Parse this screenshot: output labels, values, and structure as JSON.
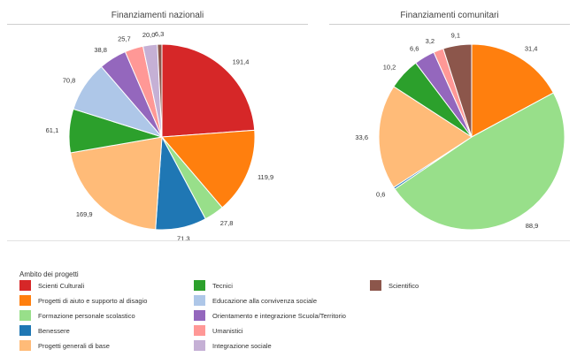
{
  "chart_data": [
    {
      "type": "pie",
      "title": "Finanziamenti nazionali",
      "slices": [
        {
          "category": "Scienti Culturali",
          "value": 191.4,
          "label": "191,4",
          "color": "#d62728"
        },
        {
          "category": "Progetti di aiuto e supporto al disagio",
          "value": 119.9,
          "label": "119,9",
          "color": "#ff7f0e"
        },
        {
          "category": "Formazione personale scolastico",
          "value": 27.8,
          "label": "27,8",
          "color": "#98df8a"
        },
        {
          "category": "Benessere",
          "value": 71.3,
          "label": "71,3",
          "color": "#1f77b4"
        },
        {
          "category": "Progetti generali di base",
          "value": 169.9,
          "label": "169,9",
          "color": "#ffbb78"
        },
        {
          "category": "Tecnici",
          "value": 61.1,
          "label": "61,1",
          "color": "#2ca02c"
        },
        {
          "category": "Educazione alla convivenza sociale",
          "value": 70.8,
          "label": "70,8",
          "color": "#aec7e8"
        },
        {
          "category": "Orientamento e integrazione Scuola/Territorio",
          "value": 38.8,
          "label": "38,8",
          "color": "#9467bd"
        },
        {
          "category": "Umanistici",
          "value": 25.7,
          "label": "25,7",
          "color": "#ff9896"
        },
        {
          "category": "Integrazione sociale",
          "value": 20.0,
          "label": "20,0",
          "color": "#c5b0d5"
        },
        {
          "category": "Scientifico",
          "value": 6.3,
          "label": "6,3",
          "color": "#8c564b"
        }
      ]
    },
    {
      "type": "pie",
      "title": "Finanziamenti comunitari",
      "slices": [
        {
          "category": "Scienti Culturali",
          "value": 0,
          "label": "",
          "color": "#d62728"
        },
        {
          "category": "Progetti di aiuto e supporto al disagio",
          "value": 31.4,
          "label": "31,4",
          "color": "#ff7f0e"
        },
        {
          "category": "Formazione personale scolastico",
          "value": 88.9,
          "label": "88,9",
          "color": "#98df8a"
        },
        {
          "category": "Benessere",
          "value": 0.6,
          "label": "0,6",
          "color": "#1f77b4"
        },
        {
          "category": "Progetti generali di base",
          "value": 33.6,
          "label": "33,6",
          "color": "#ffbb78"
        },
        {
          "category": "Tecnici",
          "value": 10.2,
          "label": "10,2",
          "color": "#2ca02c"
        },
        {
          "category": "Educazione alla convivenza sociale",
          "value": 0,
          "label": "",
          "color": "#aec7e8"
        },
        {
          "category": "Orientamento e integrazione Scuola/Territorio",
          "value": 6.6,
          "label": "6,6",
          "color": "#9467bd"
        },
        {
          "category": "Umanistici",
          "value": 3.2,
          "label": "3,2",
          "color": "#ff9896"
        },
        {
          "category": "Integrazione sociale",
          "value": 0,
          "label": "",
          "color": "#c5b0d5"
        },
        {
          "category": "Scientifico",
          "value": 9.1,
          "label": "9,1",
          "color": "#8c564b"
        }
      ]
    }
  ],
  "legend": {
    "title": "Ambito dei progetti",
    "placement": "bottom",
    "items": [
      {
        "label": "Scienti Culturali",
        "color": "#d62728"
      },
      {
        "label": "Progetti di aiuto e supporto al disagio",
        "color": "#ff7f0e"
      },
      {
        "label": "Formazione personale scolastico",
        "color": "#98df8a"
      },
      {
        "label": "Benessere",
        "color": "#1f77b4"
      },
      {
        "label": "Progetti generali di base",
        "color": "#ffbb78"
      },
      {
        "label": "Tecnici",
        "color": "#2ca02c"
      },
      {
        "label": "Educazione alla convivenza sociale",
        "color": "#aec7e8"
      },
      {
        "label": "Orientamento e integrazione Scuola/Territorio",
        "color": "#9467bd"
      },
      {
        "label": "Umanistici",
        "color": "#ff9896"
      },
      {
        "label": "Integrazione sociale",
        "color": "#c5b0d5"
      },
      {
        "label": "Scientifico",
        "color": "#8c564b"
      }
    ]
  }
}
